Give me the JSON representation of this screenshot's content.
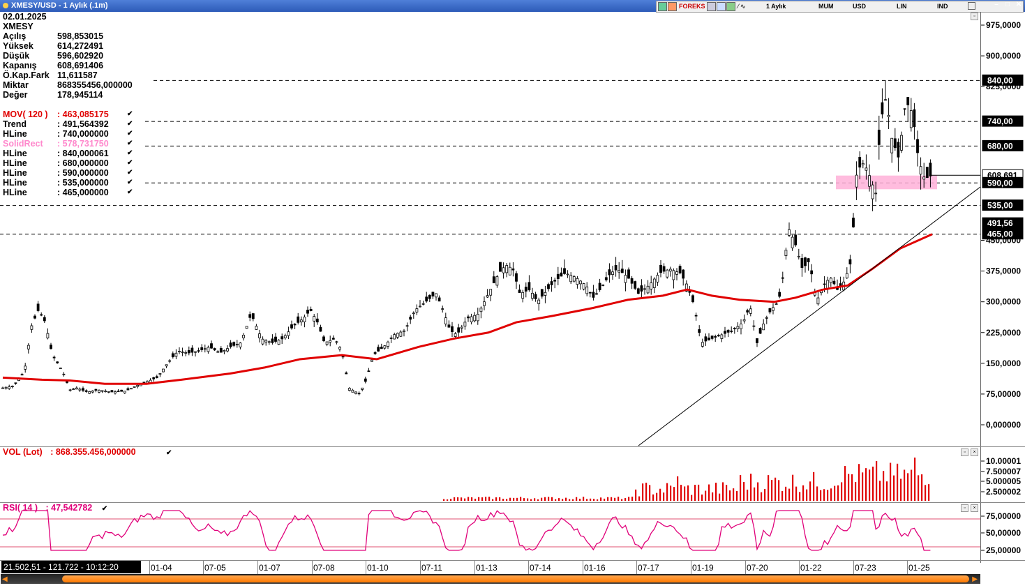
{
  "window": {
    "title": "XMESY/USD - 1 Aylık (.1m)",
    "toolbar": {
      "period": "1 Aylık",
      "bar_type": "MUM",
      "currency": "USD",
      "scale": "LIN",
      "indicator": "IND",
      "forex_logo": "FOREKS"
    }
  },
  "info": {
    "date": "02.01.2025",
    "symbol": "XMESY",
    "rows": [
      {
        "k": "Açılış",
        "v": "598,853015"
      },
      {
        "k": "Yüksek",
        "v": "614,272491"
      },
      {
        "k": "Düşük",
        "v": "596,602920"
      },
      {
        "k": "Kapanış",
        "v": "608,691406"
      },
      {
        "k": "Ö.Kap.Fark",
        "v": "11,611587"
      },
      {
        "k": "Miktar",
        "v": "868355456,000000"
      },
      {
        "k": "Değer",
        "v": "178,945114"
      }
    ],
    "indicators": [
      {
        "k": "MOV( 120 )",
        "v": ": 463,085175",
        "color": "#e00000"
      },
      {
        "k": "Trend",
        "v": ": 491,564392",
        "color": "#000000"
      },
      {
        "k": "HLine",
        "v": ": 740,000000",
        "color": "#000000"
      },
      {
        "k": "SolidRect",
        "v": ": 578,731750",
        "color": "#ff88cc"
      },
      {
        "k": "HLine",
        "v": ": 840,000061",
        "color": "#000000"
      },
      {
        "k": "HLine",
        "v": ": 680,000000",
        "color": "#000000"
      },
      {
        "k": "HLine",
        "v": ": 590,000000",
        "color": "#000000"
      },
      {
        "k": "HLine",
        "v": ": 535,000000",
        "color": "#000000"
      },
      {
        "k": "HLine",
        "v": ": 465,000000",
        "color": "#000000"
      }
    ]
  },
  "price_axis": {
    "ticks": [
      {
        "v": 975,
        "label": "975,0000"
      },
      {
        "v": 900,
        "label": "900,0000"
      },
      {
        "v": 825,
        "label": "825,0000"
      },
      {
        "v": 450,
        "label": "450,0000"
      },
      {
        "v": 375,
        "label": "375,0000"
      },
      {
        "v": 300,
        "label": "300,0000"
      },
      {
        "v": 225,
        "label": "225,0000"
      },
      {
        "v": 150,
        "label": "150,0000"
      },
      {
        "v": 75,
        "label": "75,00000"
      },
      {
        "v": 0,
        "label": "0,000000"
      }
    ],
    "tags": [
      {
        "v": 840,
        "label": "840,00",
        "bg": "#000",
        "fg": "#fff"
      },
      {
        "v": 740,
        "label": "740,00",
        "bg": "#000",
        "fg": "#fff"
      },
      {
        "v": 680,
        "label": "680,00",
        "bg": "#000",
        "fg": "#fff"
      },
      {
        "v": 608.69,
        "label": "608,691",
        "bg": "#fff",
        "fg": "#000"
      },
      {
        "v": 590,
        "label": "590,00",
        "bg": "#000",
        "fg": "#fff"
      },
      {
        "v": 535,
        "label": "535,00",
        "bg": "#000",
        "fg": "#fff"
      },
      {
        "v": 491.56,
        "label": "491,56",
        "bg": "#000",
        "fg": "#fff"
      },
      {
        "v": 465,
        "label": "465,00",
        "bg": "#000",
        "fg": "#fff"
      }
    ]
  },
  "volume": {
    "label": "VOL (Lot)",
    "value": ": 868.355.456,000000",
    "ticks": [
      "10.00001",
      "7.500007",
      "5.000005",
      "2.500002"
    ]
  },
  "rsi": {
    "label": "RSI( 14 )",
    "value": ": 47,542782",
    "ticks": [
      "75,00000",
      "50,00000",
      "25,00000"
    ]
  },
  "status": "21.502,51 - 121.722 - 10:12:20",
  "x_labels": [
    "01-04",
    "07-05",
    "01-07",
    "07-08",
    "01-10",
    "07-11",
    "01-13",
    "07-14",
    "01-16",
    "07-17",
    "01-19",
    "07-20",
    "01-22",
    "07-23",
    "01-25"
  ],
  "colors": {
    "ma": "#e00000",
    "rsi": "#e0007a",
    "rect": "#ffb0d8",
    "volume": "#e00000"
  },
  "chart_data": {
    "type": "candlestick",
    "hlines": [
      840,
      740,
      680,
      590,
      535,
      465
    ],
    "rsi_levels": [
      70,
      30
    ],
    "ylim": [
      -20,
      1000
    ],
    "last_close": 608.691406
  }
}
